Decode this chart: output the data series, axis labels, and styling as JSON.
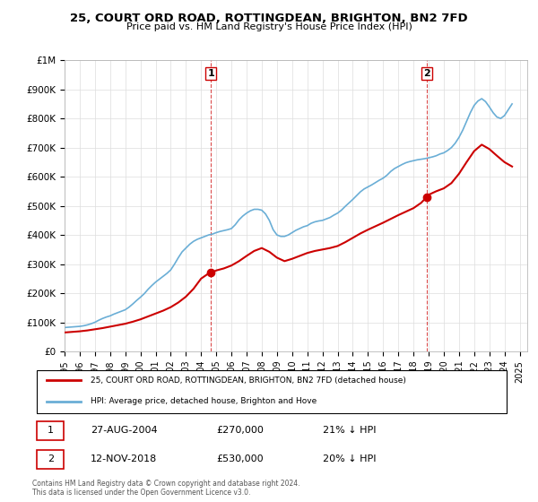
{
  "title": "25, COURT ORD ROAD, ROTTINGDEAN, BRIGHTON, BN2 7FD",
  "subtitle": "Price paid vs. HM Land Registry's House Price Index (HPI)",
  "ylim": [
    0,
    1000000
  ],
  "yticks": [
    0,
    100000,
    200000,
    300000,
    400000,
    500000,
    600000,
    700000,
    800000,
    900000,
    1000000
  ],
  "ytick_labels": [
    "£0",
    "£100K",
    "£200K",
    "£300K",
    "£400K",
    "£500K",
    "£600K",
    "£700K",
    "£800K",
    "£900K",
    "£1M"
  ],
  "xlim_start": 1995.0,
  "xlim_end": 2025.5,
  "xlabel_years": [
    "1995",
    "1996",
    "1997",
    "1998",
    "1999",
    "2000",
    "2001",
    "2002",
    "2003",
    "2004",
    "2005",
    "2006",
    "2007",
    "2008",
    "2009",
    "2010",
    "2011",
    "2012",
    "2013",
    "2014",
    "2015",
    "2016",
    "2017",
    "2018",
    "2019",
    "2020",
    "2021",
    "2022",
    "2023",
    "2024",
    "2025"
  ],
  "hpi_color": "#6aaed6",
  "price_color": "#cc0000",
  "marker1_x": 2004.65,
  "marker1_y": 270000,
  "marker2_x": 2018.87,
  "marker2_y": 530000,
  "legend_label1": "25, COURT ORD ROAD, ROTTINGDEAN, BRIGHTON, BN2 7FD (detached house)",
  "legend_label2": "HPI: Average price, detached house, Brighton and Hove",
  "table_row1": [
    "1",
    "27-AUG-2004",
    "£270,000",
    "21% ↓ HPI"
  ],
  "table_row2": [
    "2",
    "12-NOV-2018",
    "£530,000",
    "20% ↓ HPI"
  ],
  "footer": "Contains HM Land Registry data © Crown copyright and database right 2024.\nThis data is licensed under the Open Government Licence v3.0.",
  "hpi_data_x": [
    1995.0,
    1995.25,
    1995.5,
    1995.75,
    1996.0,
    1996.25,
    1996.5,
    1996.75,
    1997.0,
    1997.25,
    1997.5,
    1997.75,
    1998.0,
    1998.25,
    1998.5,
    1998.75,
    1999.0,
    1999.25,
    1999.5,
    1999.75,
    2000.0,
    2000.25,
    2000.5,
    2000.75,
    2001.0,
    2001.25,
    2001.5,
    2001.75,
    2002.0,
    2002.25,
    2002.5,
    2002.75,
    2003.0,
    2003.25,
    2003.5,
    2003.75,
    2004.0,
    2004.25,
    2004.5,
    2004.75,
    2005.0,
    2005.25,
    2005.5,
    2005.75,
    2006.0,
    2006.25,
    2006.5,
    2006.75,
    2007.0,
    2007.25,
    2007.5,
    2007.75,
    2008.0,
    2008.25,
    2008.5,
    2008.75,
    2009.0,
    2009.25,
    2009.5,
    2009.75,
    2010.0,
    2010.25,
    2010.5,
    2010.75,
    2011.0,
    2011.25,
    2011.5,
    2011.75,
    2012.0,
    2012.25,
    2012.5,
    2012.75,
    2013.0,
    2013.25,
    2013.5,
    2013.75,
    2014.0,
    2014.25,
    2014.5,
    2014.75,
    2015.0,
    2015.25,
    2015.5,
    2015.75,
    2016.0,
    2016.25,
    2016.5,
    2016.75,
    2017.0,
    2017.25,
    2017.5,
    2017.75,
    2018.0,
    2018.25,
    2018.5,
    2018.75,
    2019.0,
    2019.25,
    2019.5,
    2019.75,
    2020.0,
    2020.25,
    2020.5,
    2020.75,
    2021.0,
    2021.25,
    2021.5,
    2021.75,
    2022.0,
    2022.25,
    2022.5,
    2022.75,
    2023.0,
    2023.25,
    2023.5,
    2023.75,
    2024.0,
    2024.25,
    2024.5
  ],
  "hpi_data_y": [
    82000,
    83000,
    84000,
    85000,
    86000,
    88000,
    91000,
    95000,
    100000,
    107000,
    113000,
    118000,
    122000,
    128000,
    133000,
    138000,
    143000,
    152000,
    163000,
    175000,
    186000,
    198000,
    213000,
    226000,
    238000,
    248000,
    258000,
    268000,
    280000,
    300000,
    322000,
    342000,
    355000,
    368000,
    378000,
    385000,
    390000,
    395000,
    400000,
    403000,
    408000,
    412000,
    415000,
    418000,
    422000,
    435000,
    452000,
    465000,
    475000,
    483000,
    488000,
    488000,
    485000,
    472000,
    450000,
    418000,
    400000,
    395000,
    395000,
    400000,
    408000,
    416000,
    422000,
    428000,
    432000,
    440000,
    445000,
    448000,
    450000,
    455000,
    460000,
    468000,
    475000,
    485000,
    498000,
    510000,
    522000,
    535000,
    548000,
    558000,
    565000,
    572000,
    580000,
    588000,
    595000,
    605000,
    618000,
    628000,
    635000,
    642000,
    648000,
    652000,
    655000,
    658000,
    660000,
    662000,
    665000,
    668000,
    672000,
    678000,
    682000,
    690000,
    700000,
    715000,
    735000,
    760000,
    790000,
    820000,
    845000,
    860000,
    868000,
    858000,
    840000,
    820000,
    805000,
    800000,
    810000,
    830000,
    850000
  ],
  "price_data_x": [
    1995.0,
    1995.5,
    1996.0,
    1996.5,
    1997.0,
    1997.5,
    1998.0,
    1998.5,
    1999.0,
    1999.5,
    2000.0,
    2000.5,
    2001.0,
    2001.5,
    2002.0,
    2002.5,
    2003.0,
    2003.5,
    2004.0,
    2004.5,
    2004.65,
    2005.0,
    2005.5,
    2006.0,
    2006.5,
    2007.0,
    2007.5,
    2008.0,
    2008.5,
    2009.0,
    2009.5,
    2010.0,
    2010.5,
    2011.0,
    2011.5,
    2012.0,
    2012.5,
    2013.0,
    2013.5,
    2014.0,
    2014.5,
    2015.0,
    2015.5,
    2016.0,
    2016.5,
    2017.0,
    2017.5,
    2018.0,
    2018.5,
    2018.87,
    2019.0,
    2019.5,
    2020.0,
    2020.5,
    2021.0,
    2021.5,
    2022.0,
    2022.5,
    2023.0,
    2023.5,
    2024.0,
    2024.5
  ],
  "price_data_y": [
    65000,
    67000,
    69000,
    72000,
    76000,
    80000,
    85000,
    90000,
    95000,
    102000,
    110000,
    120000,
    130000,
    140000,
    152000,
    168000,
    188000,
    215000,
    250000,
    268000,
    270000,
    278000,
    285000,
    295000,
    310000,
    328000,
    345000,
    355000,
    342000,
    322000,
    310000,
    318000,
    328000,
    338000,
    345000,
    350000,
    355000,
    362000,
    375000,
    390000,
    405000,
    418000,
    430000,
    442000,
    455000,
    468000,
    480000,
    492000,
    510000,
    530000,
    538000,
    550000,
    560000,
    578000,
    610000,
    650000,
    688000,
    710000,
    695000,
    672000,
    650000,
    635000
  ]
}
